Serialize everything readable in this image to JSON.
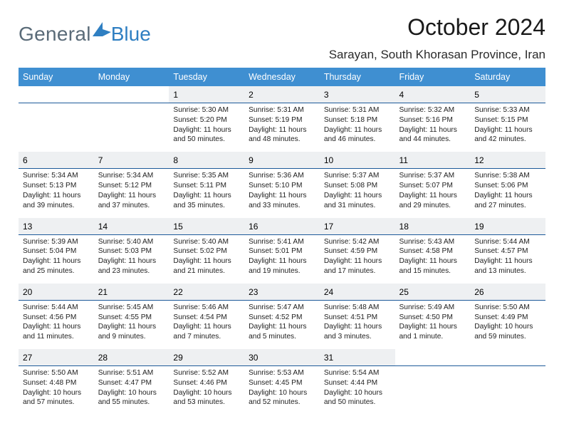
{
  "colors": {
    "header_bg": "#3f8fd1",
    "accent_line": "#1d5a9a",
    "daynum_bg": "#eef0f2",
    "logo_gray": "#5a6b78",
    "logo_blue": "#2f7fc2"
  },
  "logo": {
    "part1": "General",
    "part2": "Blue"
  },
  "title": "October 2024",
  "location": "Sarayan, South Khorasan Province, Iran",
  "day_header_fontsize": 12.5,
  "daynum_fontsize": 12,
  "detail_fontsize": 10.2,
  "weekdays": [
    "Sunday",
    "Monday",
    "Tuesday",
    "Wednesday",
    "Thursday",
    "Friday",
    "Saturday"
  ],
  "weeks": [
    [
      null,
      null,
      {
        "n": "1",
        "sunrise": "Sunrise: 5:30 AM",
        "sunset": "Sunset: 5:20 PM",
        "day": "Daylight: 11 hours and 50 minutes."
      },
      {
        "n": "2",
        "sunrise": "Sunrise: 5:31 AM",
        "sunset": "Sunset: 5:19 PM",
        "day": "Daylight: 11 hours and 48 minutes."
      },
      {
        "n": "3",
        "sunrise": "Sunrise: 5:31 AM",
        "sunset": "Sunset: 5:18 PM",
        "day": "Daylight: 11 hours and 46 minutes."
      },
      {
        "n": "4",
        "sunrise": "Sunrise: 5:32 AM",
        "sunset": "Sunset: 5:16 PM",
        "day": "Daylight: 11 hours and 44 minutes."
      },
      {
        "n": "5",
        "sunrise": "Sunrise: 5:33 AM",
        "sunset": "Sunset: 5:15 PM",
        "day": "Daylight: 11 hours and 42 minutes."
      }
    ],
    [
      {
        "n": "6",
        "sunrise": "Sunrise: 5:34 AM",
        "sunset": "Sunset: 5:13 PM",
        "day": "Daylight: 11 hours and 39 minutes."
      },
      {
        "n": "7",
        "sunrise": "Sunrise: 5:34 AM",
        "sunset": "Sunset: 5:12 PM",
        "day": "Daylight: 11 hours and 37 minutes."
      },
      {
        "n": "8",
        "sunrise": "Sunrise: 5:35 AM",
        "sunset": "Sunset: 5:11 PM",
        "day": "Daylight: 11 hours and 35 minutes."
      },
      {
        "n": "9",
        "sunrise": "Sunrise: 5:36 AM",
        "sunset": "Sunset: 5:10 PM",
        "day": "Daylight: 11 hours and 33 minutes."
      },
      {
        "n": "10",
        "sunrise": "Sunrise: 5:37 AM",
        "sunset": "Sunset: 5:08 PM",
        "day": "Daylight: 11 hours and 31 minutes."
      },
      {
        "n": "11",
        "sunrise": "Sunrise: 5:37 AM",
        "sunset": "Sunset: 5:07 PM",
        "day": "Daylight: 11 hours and 29 minutes."
      },
      {
        "n": "12",
        "sunrise": "Sunrise: 5:38 AM",
        "sunset": "Sunset: 5:06 PM",
        "day": "Daylight: 11 hours and 27 minutes."
      }
    ],
    [
      {
        "n": "13",
        "sunrise": "Sunrise: 5:39 AM",
        "sunset": "Sunset: 5:04 PM",
        "day": "Daylight: 11 hours and 25 minutes."
      },
      {
        "n": "14",
        "sunrise": "Sunrise: 5:40 AM",
        "sunset": "Sunset: 5:03 PM",
        "day": "Daylight: 11 hours and 23 minutes."
      },
      {
        "n": "15",
        "sunrise": "Sunrise: 5:40 AM",
        "sunset": "Sunset: 5:02 PM",
        "day": "Daylight: 11 hours and 21 minutes."
      },
      {
        "n": "16",
        "sunrise": "Sunrise: 5:41 AM",
        "sunset": "Sunset: 5:01 PM",
        "day": "Daylight: 11 hours and 19 minutes."
      },
      {
        "n": "17",
        "sunrise": "Sunrise: 5:42 AM",
        "sunset": "Sunset: 4:59 PM",
        "day": "Daylight: 11 hours and 17 minutes."
      },
      {
        "n": "18",
        "sunrise": "Sunrise: 5:43 AM",
        "sunset": "Sunset: 4:58 PM",
        "day": "Daylight: 11 hours and 15 minutes."
      },
      {
        "n": "19",
        "sunrise": "Sunrise: 5:44 AM",
        "sunset": "Sunset: 4:57 PM",
        "day": "Daylight: 11 hours and 13 minutes."
      }
    ],
    [
      {
        "n": "20",
        "sunrise": "Sunrise: 5:44 AM",
        "sunset": "Sunset: 4:56 PM",
        "day": "Daylight: 11 hours and 11 minutes."
      },
      {
        "n": "21",
        "sunrise": "Sunrise: 5:45 AM",
        "sunset": "Sunset: 4:55 PM",
        "day": "Daylight: 11 hours and 9 minutes."
      },
      {
        "n": "22",
        "sunrise": "Sunrise: 5:46 AM",
        "sunset": "Sunset: 4:54 PM",
        "day": "Daylight: 11 hours and 7 minutes."
      },
      {
        "n": "23",
        "sunrise": "Sunrise: 5:47 AM",
        "sunset": "Sunset: 4:52 PM",
        "day": "Daylight: 11 hours and 5 minutes."
      },
      {
        "n": "24",
        "sunrise": "Sunrise: 5:48 AM",
        "sunset": "Sunset: 4:51 PM",
        "day": "Daylight: 11 hours and 3 minutes."
      },
      {
        "n": "25",
        "sunrise": "Sunrise: 5:49 AM",
        "sunset": "Sunset: 4:50 PM",
        "day": "Daylight: 11 hours and 1 minute."
      },
      {
        "n": "26",
        "sunrise": "Sunrise: 5:50 AM",
        "sunset": "Sunset: 4:49 PM",
        "day": "Daylight: 10 hours and 59 minutes."
      }
    ],
    [
      {
        "n": "27",
        "sunrise": "Sunrise: 5:50 AM",
        "sunset": "Sunset: 4:48 PM",
        "day": "Daylight: 10 hours and 57 minutes."
      },
      {
        "n": "28",
        "sunrise": "Sunrise: 5:51 AM",
        "sunset": "Sunset: 4:47 PM",
        "day": "Daylight: 10 hours and 55 minutes."
      },
      {
        "n": "29",
        "sunrise": "Sunrise: 5:52 AM",
        "sunset": "Sunset: 4:46 PM",
        "day": "Daylight: 10 hours and 53 minutes."
      },
      {
        "n": "30",
        "sunrise": "Sunrise: 5:53 AM",
        "sunset": "Sunset: 4:45 PM",
        "day": "Daylight: 10 hours and 52 minutes."
      },
      {
        "n": "31",
        "sunrise": "Sunrise: 5:54 AM",
        "sunset": "Sunset: 4:44 PM",
        "day": "Daylight: 10 hours and 50 minutes."
      },
      null,
      null
    ]
  ]
}
